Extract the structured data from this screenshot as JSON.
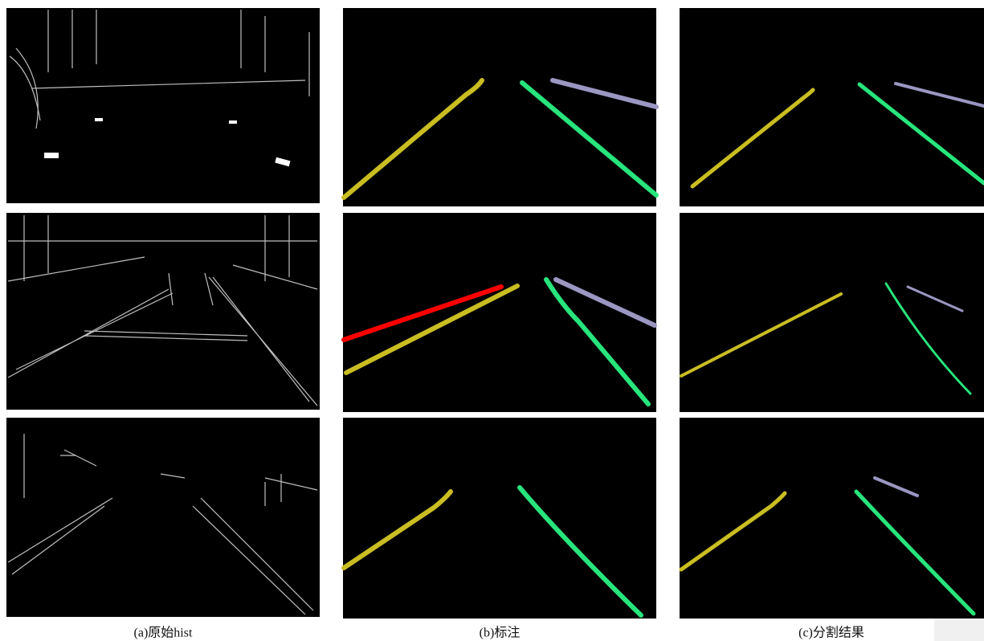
{
  "captions": [
    "(a)原始hist",
    "(b)标注",
    "(c)分割结果"
  ]
}
